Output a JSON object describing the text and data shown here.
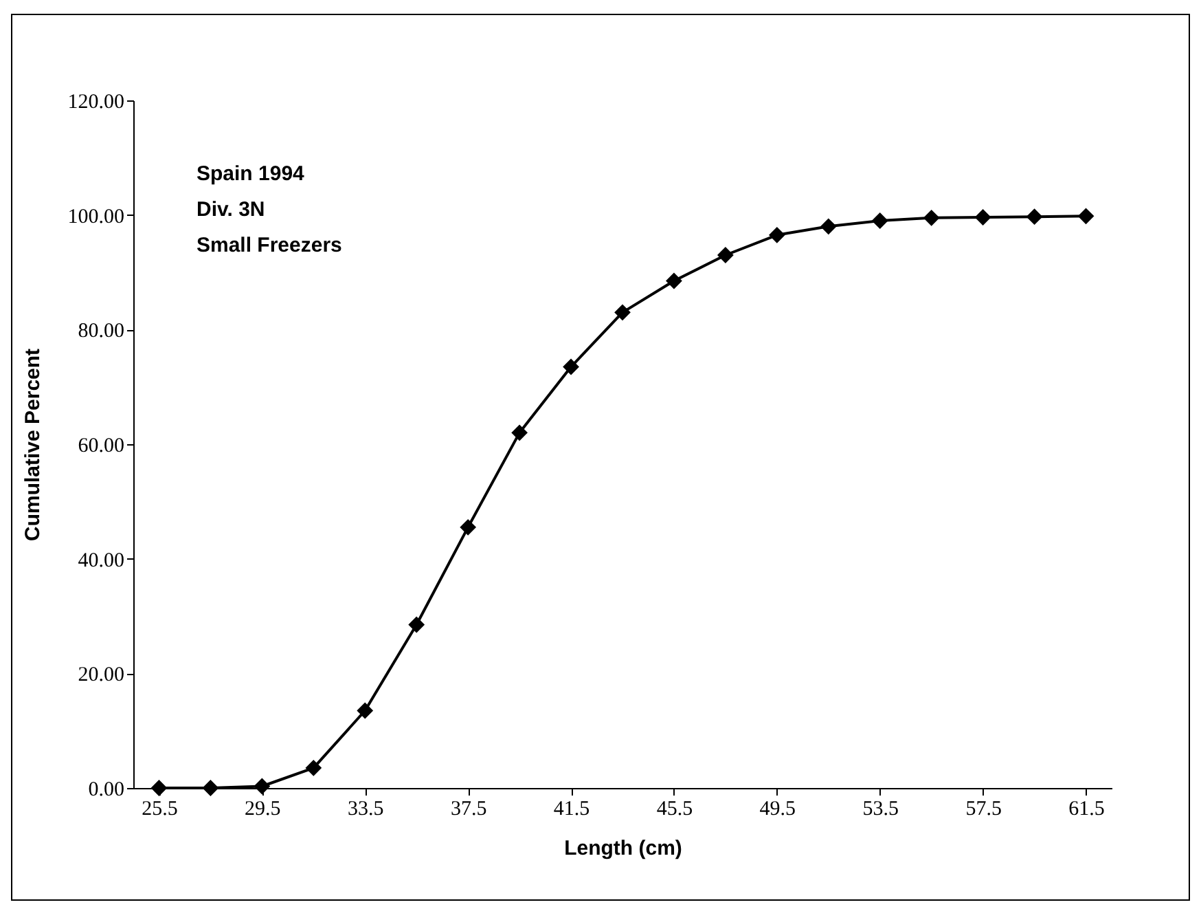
{
  "chart_data": {
    "type": "line",
    "xlabel": "Length (cm)",
    "ylabel": "Cumulative Percent",
    "annotations": [
      "Spain 1994",
      "Div. 3N",
      "Small Freezers"
    ],
    "x": [
      25.5,
      27.5,
      29.5,
      31.5,
      33.5,
      35.5,
      37.5,
      39.5,
      41.5,
      43.5,
      45.5,
      47.5,
      49.5,
      51.5,
      53.5,
      55.5,
      57.5,
      59.5,
      61.5
    ],
    "series": [
      {
        "color": "#000000",
        "values": [
          0,
          0,
          0.3,
          3.5,
          13.5,
          28.5,
          45.5,
          62,
          73.5,
          83,
          88.5,
          93,
          96.5,
          98,
          99,
          99.5,
          99.6,
          99.7,
          99.8
        ]
      }
    ],
    "xlim": [
      24.5,
      62.5
    ],
    "xticks": [
      25.5,
      29.5,
      33.5,
      37.5,
      41.5,
      45.5,
      49.5,
      53.5,
      57.5,
      61.5
    ],
    "ylim": [
      0,
      120
    ],
    "yticks": [
      {
        "value": 0,
        "label": "0.00"
      },
      {
        "value": 20,
        "label": "20.00"
      },
      {
        "value": 40,
        "label": "40.00"
      },
      {
        "value": 60,
        "label": "60.00"
      },
      {
        "value": 80,
        "label": "80.00"
      },
      {
        "value": 100,
        "label": "100.00"
      },
      {
        "value": 120,
        "label": "120.00"
      }
    ],
    "grid": false,
    "legend": false,
    "marker": "diamond",
    "line_style": "solid"
  }
}
